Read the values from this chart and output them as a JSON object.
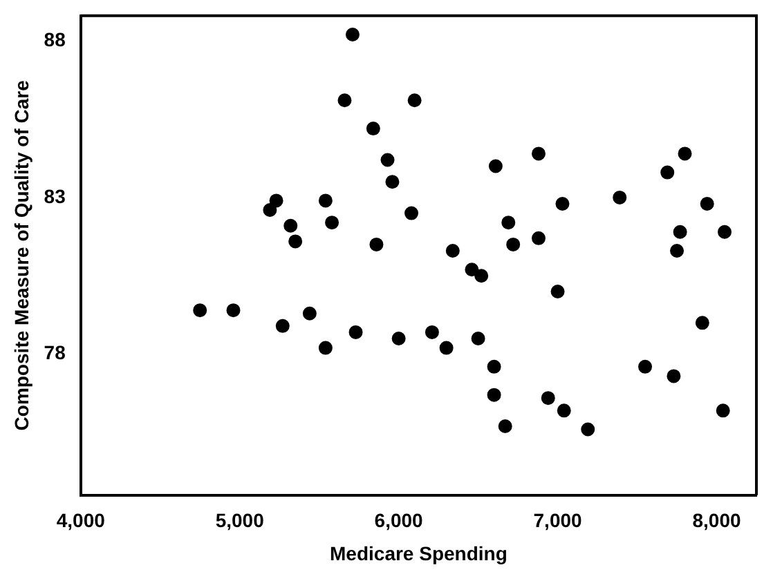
{
  "chart_data": {
    "type": "scatter",
    "xlabel": "Medicare Spending",
    "ylabel": "Composite Measure of Quality of Care",
    "x": [
      5710,
      5660,
      6100,
      5840,
      5930,
      5960,
      5230,
      5190,
      5540,
      5580,
      5320,
      5350,
      6080,
      5860,
      6340,
      6610,
      6880,
      7690,
      7800,
      7030,
      7390,
      7940,
      6690,
      6720,
      6880,
      7770,
      8050,
      7750,
      4750,
      4960,
      5270,
      5440,
      5540,
      5730,
      6000,
      6210,
      6300,
      6460,
      6520,
      7000,
      7910,
      6500,
      6600,
      7550,
      7730,
      6600,
      6940,
      7040,
      6670,
      7190,
      8040
    ],
    "series": [
      {
        "color": "#000000",
        "values": [
          88.2,
          86.1,
          86.1,
          85.2,
          84.2,
          83.5,
          82.9,
          82.6,
          82.9,
          82.2,
          82.1,
          81.6,
          82.5,
          81.5,
          81.3,
          84.0,
          84.4,
          83.8,
          84.4,
          82.8,
          83.0,
          82.8,
          82.2,
          81.5,
          81.7,
          81.9,
          81.9,
          81.3,
          79.4,
          79.4,
          78.9,
          79.3,
          78.2,
          78.7,
          78.5,
          78.7,
          78.2,
          80.7,
          80.5,
          80.0,
          79.0,
          78.5,
          77.6,
          77.6,
          77.3,
          76.7,
          76.6,
          76.2,
          75.7,
          75.6,
          76.2
        ]
      }
    ],
    "xlim": [
      4000,
      8250
    ],
    "ylim": [
      73.5,
      88.8
    ],
    "xticks": [
      {
        "value": 4000,
        "label": "4,000"
      },
      {
        "value": 5000,
        "label": "5,000"
      },
      {
        "value": 6000,
        "label": "6,000"
      },
      {
        "value": 7000,
        "label": "7,000"
      },
      {
        "value": 8000,
        "label": "8,000"
      }
    ],
    "yticks": [
      78,
      83,
      88
    ],
    "marker": "circle",
    "grid": false,
    "legend": false
  }
}
